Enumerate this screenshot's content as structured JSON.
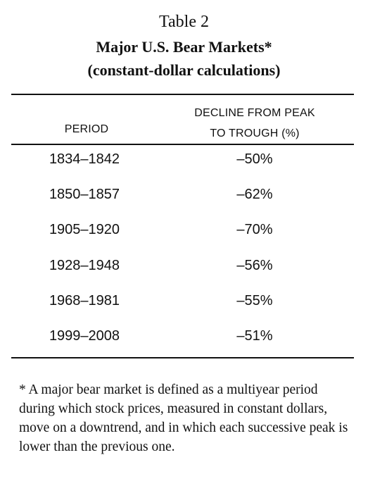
{
  "caption": {
    "number": "Table 2",
    "title": "Major U.S. Bear Markets*",
    "subtitle": "(constant-dollar calculations)"
  },
  "headers": {
    "period": "PERIOD",
    "decline_line1": "DECLINE FROM PEAK",
    "decline_line2": "TO TROUGH (%)"
  },
  "rows": [
    {
      "period": "1834–1842",
      "decline": "–50%"
    },
    {
      "period": "1850–1857",
      "decline": "–62%"
    },
    {
      "period": "1905–1920",
      "decline": "–70%"
    },
    {
      "period": "1928–1948",
      "decline": "–56%"
    },
    {
      "period": "1968–1981",
      "decline": "–55%"
    },
    {
      "period": "1999–2008",
      "decline": "–51%"
    }
  ],
  "footnote": "* A major bear market is defined as a multiyear period during which stock prices, measured in constant dollars, move on a downtrend, and in which each successive peak is lower than the previous one."
}
